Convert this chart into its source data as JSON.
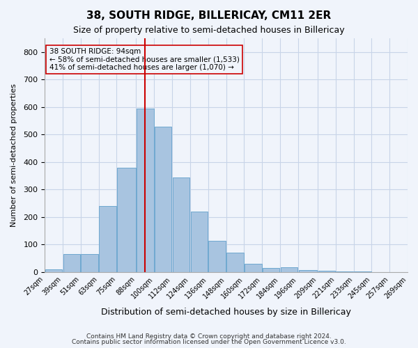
{
  "title": "38, SOUTH RIDGE, BILLERICAY, CM11 2ER",
  "subtitle": "Size of property relative to semi-detached houses in Billericay",
  "xlabel": "Distribution of semi-detached houses by size in Billericay",
  "ylabel": "Number of semi-detached properties",
  "footer1": "Contains HM Land Registry data © Crown copyright and database right 2024.",
  "footer2": "Contains public sector information licensed under the Open Government Licence v3.0.",
  "bar_color": "#a8c4e0",
  "bar_edge_color": "#6fa8d0",
  "grid_color": "#c8d4e8",
  "red_line_color": "#cc0000",
  "annotation_box_color": "#cc0000",
  "background_color": "#f0f4fb",
  "bins": [
    "27sqm",
    "39sqm",
    "51sqm",
    "63sqm",
    "75sqm",
    "88sqm",
    "100sqm",
    "112sqm",
    "124sqm",
    "136sqm",
    "148sqm",
    "160sqm",
    "172sqm",
    "184sqm",
    "196sqm",
    "209sqm",
    "221sqm",
    "233sqm",
    "245sqm",
    "257sqm",
    "269sqm"
  ],
  "bin_edges": [
    27,
    39,
    51,
    63,
    75,
    88,
    100,
    112,
    124,
    136,
    148,
    160,
    172,
    184,
    196,
    209,
    221,
    233,
    245,
    257,
    269
  ],
  "values": [
    10,
    65,
    65,
    240,
    380,
    595,
    530,
    345,
    220,
    115,
    70,
    30,
    15,
    18,
    8,
    5,
    3,
    2,
    1,
    1
  ],
  "red_line_x": 94,
  "property_size": "94sqm",
  "pct_smaller": 58,
  "n_smaller": 1533,
  "pct_larger": 41,
  "n_larger": 1070,
  "annotation_text_line1": "38 SOUTH RIDGE: 94sqm",
  "annotation_text_line2": "← 58% of semi-detached houses are smaller (1,533)",
  "annotation_text_line3": "41% of semi-detached houses are larger (1,070) →",
  "ylim": [
    0,
    850
  ],
  "yticks": [
    0,
    100,
    200,
    300,
    400,
    500,
    600,
    700,
    800
  ]
}
